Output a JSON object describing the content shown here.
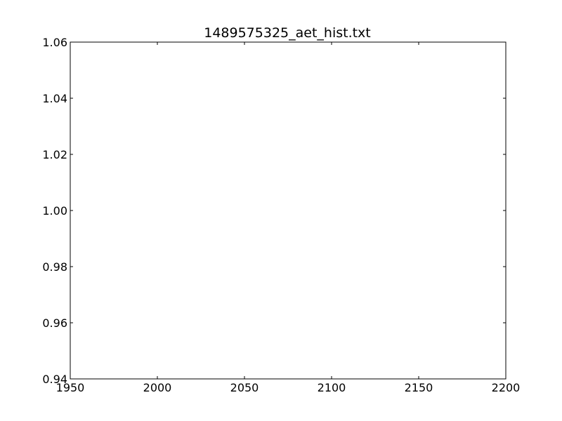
{
  "chart_data": {
    "type": "line",
    "title": "1489575325_aet_hist.txt",
    "xlabel": "",
    "ylabel": "",
    "xlim": [
      1950,
      2200
    ],
    "ylim": [
      0.94,
      1.06
    ],
    "x_ticks": [
      1950,
      2000,
      2050,
      2100,
      2150,
      2200
    ],
    "x_tick_labels": [
      "1950",
      "2000",
      "2050",
      "2100",
      "2150",
      "2200"
    ],
    "y_ticks": [
      0.94,
      0.96,
      0.98,
      1.0,
      1.02,
      1.04,
      1.06
    ],
    "y_tick_labels": [
      "0.94",
      "0.96",
      "0.98",
      "1.00",
      "1.02",
      "1.04",
      "1.06"
    ],
    "series": [],
    "grid": false,
    "legend": "none",
    "colors": {
      "axes": "#000000",
      "background": "#ffffff"
    }
  }
}
